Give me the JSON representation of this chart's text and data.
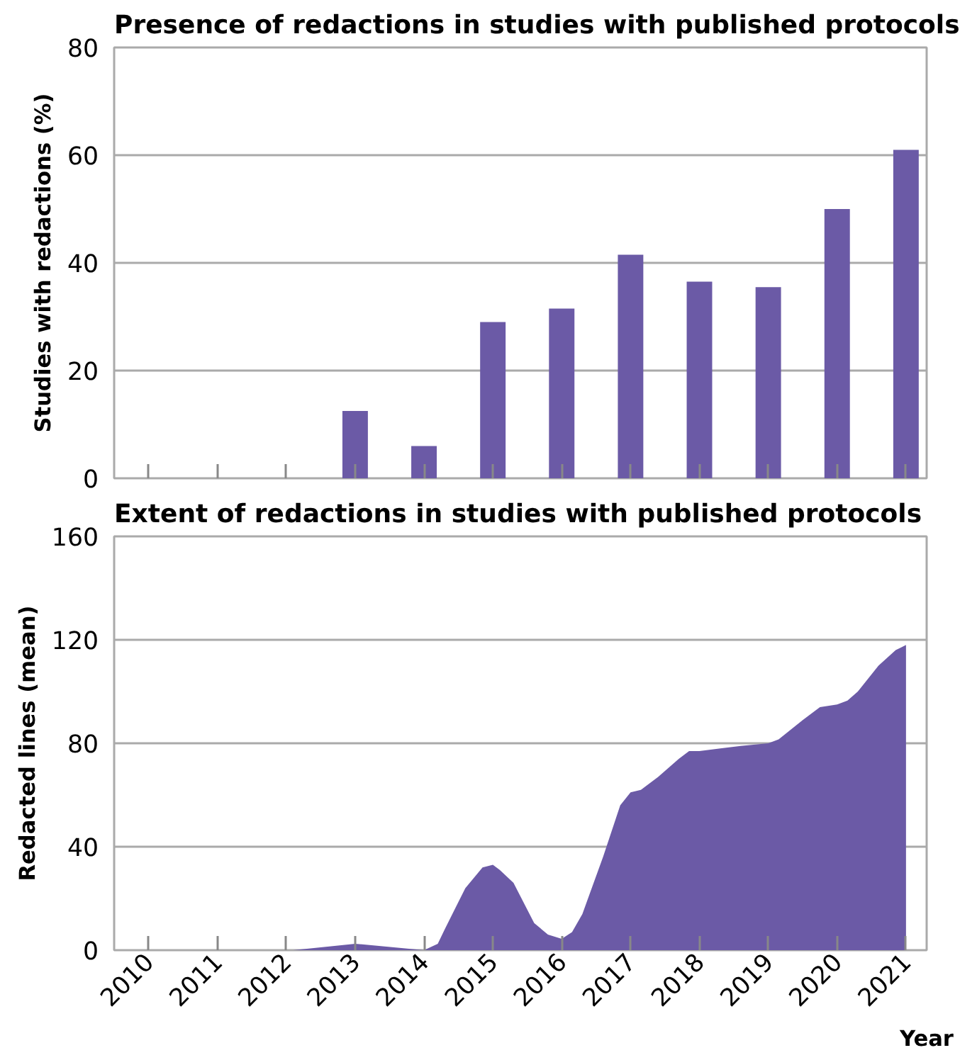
{
  "chart_data": [
    {
      "type": "bar",
      "title": "Presence of redactions in studies with published protocols",
      "ylabel": "Studies with redactions (%)",
      "x": [
        2010,
        2011,
        2012,
        2013,
        2014,
        2015,
        2016,
        2017,
        2018,
        2019,
        2020,
        2021
      ],
      "values": [
        0,
        0,
        0,
        12.5,
        6,
        29,
        31.5,
        41.5,
        36.5,
        35.5,
        50,
        61
      ],
      "color": "#6b5aa6",
      "xlim": [
        2009.5,
        2021.3
      ],
      "xticks": [
        2010,
        2011,
        2012,
        2013,
        2014,
        2015,
        2016,
        2017,
        2018,
        2019,
        2020,
        2021
      ],
      "ylim": [
        0,
        80
      ],
      "yticks": [
        0,
        20,
        40,
        60,
        80
      ],
      "grid": "y",
      "tick_labels": "y"
    },
    {
      "type": "area",
      "title": "Extent of redactions in studies with published protocols",
      "ylabel": "Redacted lines (mean)",
      "xlabel": "Year",
      "x": [
        2010,
        2011,
        2012,
        2012.1,
        2013,
        2014,
        2014.2,
        2014.3,
        2014.6,
        2014.85,
        2015,
        2015.1,
        2015.3,
        2015.6,
        2015.8,
        2016,
        2016.15,
        2016.3,
        2016.6,
        2016.85,
        2017,
        2017.15,
        2017.4,
        2017.7,
        2017.85,
        2018,
        2018.6,
        2019,
        2019.15,
        2019.5,
        2019.75,
        2020,
        2020.15,
        2020.3,
        2020.6,
        2020.85,
        2021
      ],
      "values": [
        0,
        0,
        0,
        0,
        2.5,
        0,
        2.5,
        8,
        24,
        32,
        33,
        31,
        26,
        10.5,
        6,
        4.4,
        7,
        14,
        36,
        56,
        61,
        62,
        67,
        74,
        77,
        77,
        79,
        80,
        81.5,
        89,
        94,
        95,
        96.5,
        100,
        110,
        116,
        118
      ],
      "color": "#6b5aa6",
      "xlim": [
        2009.5,
        2021.3
      ],
      "xticks": [
        2010,
        2011,
        2012,
        2013,
        2014,
        2015,
        2016,
        2017,
        2018,
        2019,
        2020,
        2021
      ],
      "ylim": [
        0,
        160
      ],
      "yticks": [
        0,
        40,
        80,
        120,
        160
      ],
      "grid": "y"
    }
  ]
}
